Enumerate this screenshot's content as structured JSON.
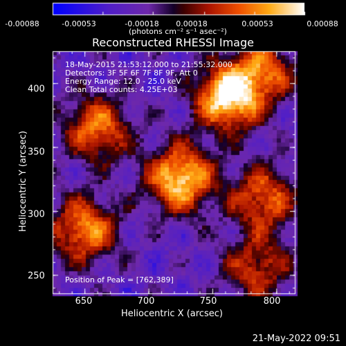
{
  "chart_data": {
    "type": "heatmap",
    "title": "Reconstructed RHESSI Image",
    "xlabel": "Heliocentric X (arcsec)",
    "ylabel": "Heliocentric Y (arcsec)",
    "xlim": [
      625,
      815
    ],
    "ylim": [
      235,
      425
    ],
    "xticks": [
      650,
      700,
      750,
      800
    ],
    "yticks": [
      250,
      300,
      350,
      400
    ],
    "colorbar": {
      "range": [
        -0.00088,
        0.00088
      ],
      "tick_values": [
        -0.00088,
        -0.00053,
        -0.00018,
        0.00018,
        0.00053,
        0.00088
      ],
      "tick_labels": [
        "-0.00088",
        "-0.00053",
        "-0.00018",
        "0.00018",
        "0.00053",
        "0.00088"
      ],
      "unit_label": "(photons cm⁻² s⁻¹ asec⁻²)"
    },
    "sources": [
      {
        "x": 762,
        "y": 389,
        "amp": 1.0
      },
      {
        "x": 725,
        "y": 325,
        "amp": 0.95
      },
      {
        "x": 660,
        "y": 365,
        "amp": 0.7
      },
      {
        "x": 650,
        "y": 285,
        "amp": 0.75
      },
      {
        "x": 790,
        "y": 410,
        "amp": 0.6
      },
      {
        "x": 790,
        "y": 310,
        "amp": 0.65
      },
      {
        "x": 785,
        "y": 255,
        "amp": 0.55
      }
    ],
    "grid": false
  },
  "info": {
    "time_range": "18-May-2015 21:53:12.000 to 21:55:32.000",
    "detectors": "Detectors: 3F 5F 6F 7F 8F 9F, Att 0",
    "energy": "Energy Range: 12.0 - 25.0 keV",
    "clean": "Clean     Total counts: 4.25E+03",
    "peak": "Position of Peak = [762,389]"
  },
  "footer": {
    "date": "21-May-2022 09:51"
  }
}
